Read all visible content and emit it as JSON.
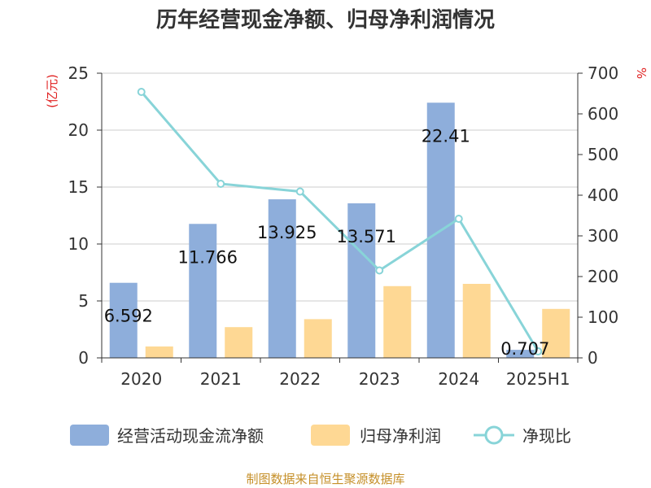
{
  "title": "历年经营现金净额、归母净利润情况",
  "left_unit": "(亿元)",
  "right_unit": "%",
  "source": "制图数据来自恒生聚源数据库",
  "legend": [
    {
      "label": "经营活动现金流净额",
      "icon": "bar-swatch"
    },
    {
      "label": "归母净利润",
      "icon": "bar-swatch"
    },
    {
      "label": "净现比",
      "icon": "line-circle"
    }
  ],
  "chart_data": {
    "type": "bar",
    "categories": [
      "2020",
      "2021",
      "2022",
      "2023",
      "2024",
      "2025H1"
    ],
    "series": [
      {
        "name": "经营活动现金流净额",
        "axis": "left",
        "type": "bar",
        "color": "#8eaedb",
        "values": [
          6.592,
          11.766,
          13.925,
          13.571,
          22.41,
          0.707
        ],
        "labels": [
          "6.592",
          "11.766",
          "13.925",
          "13.571",
          "22.41",
          "0.707"
        ]
      },
      {
        "name": "归母净利润",
        "axis": "left",
        "type": "bar",
        "color": "#fed894",
        "values": [
          1.0,
          2.7,
          3.4,
          6.3,
          6.5,
          4.3
        ]
      },
      {
        "name": "净现比",
        "axis": "right",
        "type": "line",
        "color": "#88d4d8",
        "values": [
          654,
          428,
          409,
          215,
          342,
          16
        ]
      }
    ],
    "ylim_left": [
      0,
      25
    ],
    "yticks_left": [
      "0",
      "5",
      "10",
      "15",
      "20",
      "25"
    ],
    "ylim_right": [
      0,
      700
    ],
    "yticks_right": [
      "0",
      "100",
      "200",
      "300",
      "400",
      "500",
      "600",
      "700"
    ],
    "grid": true
  }
}
